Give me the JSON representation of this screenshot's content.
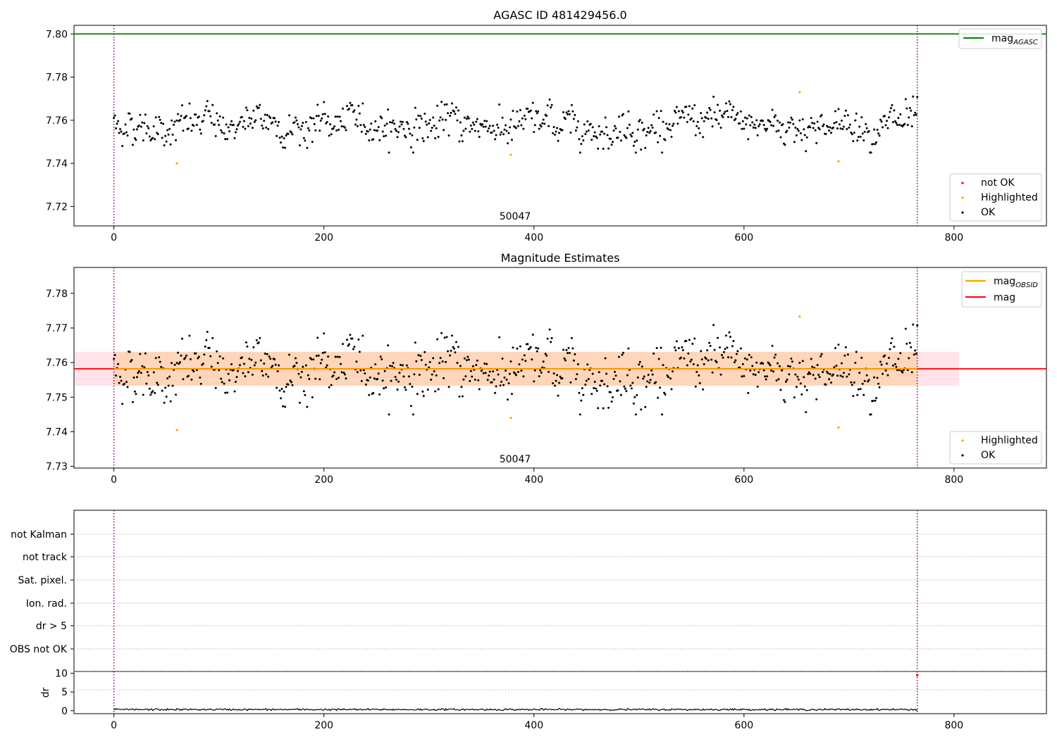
{
  "chart_data": [
    {
      "id": "agasc",
      "type": "scatter",
      "title": "AGASC ID 481429456.0",
      "xlim": [
        -38,
        888
      ],
      "ylim": [
        7.711,
        7.804
      ],
      "xticks": [
        0,
        200,
        400,
        600,
        800
      ],
      "yticks": [
        7.72,
        7.74,
        7.76,
        7.78,
        7.8
      ],
      "ytick_labels": [
        "7.72",
        "7.74",
        "7.76",
        "7.78",
        "7.80"
      ],
      "hline": {
        "name": "mag_AGASC",
        "y": 7.8,
        "color": "#008000"
      },
      "vlines": [
        0,
        765
      ],
      "obsid_label": {
        "text": "50047",
        "x": 383
      },
      "legend_upper": [
        {
          "label": "mag",
          "sub": "AGASC",
          "color": "#008000"
        }
      ],
      "legend_lower": [
        {
          "label": "not OK",
          "color": "#ff0000"
        },
        {
          "label": "Highlighted",
          "color": "#ffa500"
        },
        {
          "label": "OK",
          "color": "#000000"
        }
      ],
      "highlighted_points": [
        [
          60,
          7.74
        ],
        [
          378,
          7.744
        ],
        [
          653,
          7.773
        ],
        [
          690,
          7.741
        ]
      ],
      "ok_series": {
        "n": 766,
        "mean": 7.758,
        "std": 0.0045,
        "ymin": 7.745,
        "ymax": 7.771
      }
    },
    {
      "id": "estimates",
      "type": "scatter",
      "title": "Magnitude Estimates",
      "xlim": [
        -38,
        888
      ],
      "ylim": [
        7.7295,
        7.7875
      ],
      "xticks": [
        0,
        200,
        400,
        600,
        800
      ],
      "yticks": [
        7.73,
        7.74,
        7.75,
        7.76,
        7.77,
        7.78
      ],
      "ytick_labels": [
        "7.73",
        "7.74",
        "7.75",
        "7.76",
        "7.77",
        "7.78"
      ],
      "mag_line": {
        "y": 7.7582,
        "color": "#ff0000",
        "band": [
          7.7533,
          7.7631
        ],
        "band_x": [
          -38,
          805
        ]
      },
      "mag_obsid": {
        "y": 7.7582,
        "color": "#ffa500",
        "band": [
          7.7533,
          7.7631
        ],
        "x_range": [
          0,
          765
        ]
      },
      "vlines": [
        0,
        765
      ],
      "obsid_label": {
        "text": "50047",
        "x": 383
      },
      "legend_upper": [
        {
          "label": "mag",
          "sub": "OBSID",
          "color": "#ffa500"
        },
        {
          "label": "mag",
          "sub": "",
          "color": "#ff0000"
        }
      ],
      "legend_lower": [
        {
          "label": "Highlighted",
          "color": "#ffa500"
        },
        {
          "label": "OK",
          "color": "#000000"
        }
      ],
      "highlighted_points": [
        [
          60,
          7.7405
        ],
        [
          378,
          7.744
        ],
        [
          653,
          7.7733
        ],
        [
          690,
          7.7412
        ]
      ]
    },
    {
      "id": "flags",
      "type": "scatter",
      "xlim": [
        -38,
        888
      ],
      "flag_labels": [
        "not Kalman",
        "not track",
        "Sat. pixel.",
        "Ion. rad.",
        "dr > 5",
        "OBS not OK"
      ],
      "vlines": [
        0,
        765
      ]
    },
    {
      "id": "dr",
      "type": "line",
      "ylabel": "dr",
      "xlim": [
        -38,
        888
      ],
      "ylim": [
        -0.8,
        10.5
      ],
      "xticks": [
        0,
        200,
        400,
        600,
        800
      ],
      "yticks": [
        0,
        5,
        10
      ],
      "ytick_labels": [
        "0",
        "5",
        "10"
      ],
      "series": {
        "n": 766,
        "mean": 0.3,
        "jitter": 0.25
      },
      "vlines": [
        0,
        765
      ],
      "outlier": {
        "x": 765,
        "y": 9.5
      }
    }
  ]
}
